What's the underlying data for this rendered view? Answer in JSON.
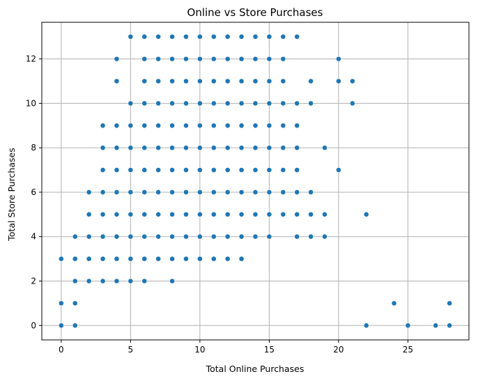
{
  "chart_data": {
    "type": "scatter",
    "title": "Online vs Store Purchases",
    "xlabel": "Total Online Purchases",
    "ylabel": "Total Store Purchases",
    "xlim": [
      -1.4,
      29.4
    ],
    "ylim": [
      -0.65,
      13.65
    ],
    "xticks": [
      0,
      5,
      10,
      15,
      20,
      25
    ],
    "yticks": [
      0,
      2,
      4,
      6,
      8,
      10,
      12
    ],
    "grid": true,
    "colors": {
      "point": "#1f77b4",
      "grid": "#b0b0b0"
    },
    "points": [
      [
        5,
        13
      ],
      [
        6,
        13
      ],
      [
        7,
        13
      ],
      [
        8,
        13
      ],
      [
        9,
        13
      ],
      [
        10,
        13
      ],
      [
        11,
        13
      ],
      [
        12,
        13
      ],
      [
        13,
        13
      ],
      [
        14,
        13
      ],
      [
        15,
        13
      ],
      [
        16,
        13
      ],
      [
        17,
        13
      ],
      [
        4,
        12
      ],
      [
        6,
        12
      ],
      [
        7,
        12
      ],
      [
        8,
        12
      ],
      [
        9,
        12
      ],
      [
        10,
        12
      ],
      [
        11,
        12
      ],
      [
        12,
        12
      ],
      [
        13,
        12
      ],
      [
        14,
        12
      ],
      [
        15,
        12
      ],
      [
        16,
        12
      ],
      [
        20,
        12
      ],
      [
        4,
        11
      ],
      [
        6,
        11
      ],
      [
        7,
        11
      ],
      [
        8,
        11
      ],
      [
        9,
        11
      ],
      [
        10,
        11
      ],
      [
        11,
        11
      ],
      [
        12,
        11
      ],
      [
        13,
        11
      ],
      [
        14,
        11
      ],
      [
        15,
        11
      ],
      [
        16,
        11
      ],
      [
        18,
        11
      ],
      [
        20,
        11
      ],
      [
        21,
        11
      ],
      [
        5,
        10
      ],
      [
        6,
        10
      ],
      [
        7,
        10
      ],
      [
        8,
        10
      ],
      [
        9,
        10
      ],
      [
        10,
        10
      ],
      [
        11,
        10
      ],
      [
        12,
        10
      ],
      [
        13,
        10
      ],
      [
        14,
        10
      ],
      [
        15,
        10
      ],
      [
        16,
        10
      ],
      [
        17,
        10
      ],
      [
        18,
        10
      ],
      [
        21,
        10
      ],
      [
        3,
        9
      ],
      [
        4,
        9
      ],
      [
        5,
        9
      ],
      [
        6,
        9
      ],
      [
        7,
        9
      ],
      [
        8,
        9
      ],
      [
        9,
        9
      ],
      [
        10,
        9
      ],
      [
        11,
        9
      ],
      [
        12,
        9
      ],
      [
        13,
        9
      ],
      [
        14,
        9
      ],
      [
        15,
        9
      ],
      [
        16,
        9
      ],
      [
        17,
        9
      ],
      [
        3,
        8
      ],
      [
        4,
        8
      ],
      [
        5,
        8
      ],
      [
        6,
        8
      ],
      [
        7,
        8
      ],
      [
        8,
        8
      ],
      [
        9,
        8
      ],
      [
        10,
        8
      ],
      [
        11,
        8
      ],
      [
        12,
        8
      ],
      [
        13,
        8
      ],
      [
        14,
        8
      ],
      [
        15,
        8
      ],
      [
        16,
        8
      ],
      [
        17,
        8
      ],
      [
        19,
        8
      ],
      [
        3,
        7
      ],
      [
        4,
        7
      ],
      [
        5,
        7
      ],
      [
        6,
        7
      ],
      [
        7,
        7
      ],
      [
        8,
        7
      ],
      [
        9,
        7
      ],
      [
        10,
        7
      ],
      [
        11,
        7
      ],
      [
        12,
        7
      ],
      [
        13,
        7
      ],
      [
        14,
        7
      ],
      [
        15,
        7
      ],
      [
        16,
        7
      ],
      [
        17,
        7
      ],
      [
        20,
        7
      ],
      [
        2,
        6
      ],
      [
        3,
        6
      ],
      [
        4,
        6
      ],
      [
        5,
        6
      ],
      [
        6,
        6
      ],
      [
        7,
        6
      ],
      [
        8,
        6
      ],
      [
        9,
        6
      ],
      [
        10,
        6
      ],
      [
        11,
        6
      ],
      [
        12,
        6
      ],
      [
        13,
        6
      ],
      [
        14,
        6
      ],
      [
        15,
        6
      ],
      [
        16,
        6
      ],
      [
        17,
        6
      ],
      [
        18,
        6
      ],
      [
        2,
        5
      ],
      [
        3,
        5
      ],
      [
        4,
        5
      ],
      [
        5,
        5
      ],
      [
        6,
        5
      ],
      [
        7,
        5
      ],
      [
        8,
        5
      ],
      [
        9,
        5
      ],
      [
        10,
        5
      ],
      [
        11,
        5
      ],
      [
        12,
        5
      ],
      [
        13,
        5
      ],
      [
        14,
        5
      ],
      [
        15,
        5
      ],
      [
        16,
        5
      ],
      [
        17,
        5
      ],
      [
        18,
        5
      ],
      [
        19,
        5
      ],
      [
        22,
        5
      ],
      [
        1,
        4
      ],
      [
        2,
        4
      ],
      [
        3,
        4
      ],
      [
        4,
        4
      ],
      [
        5,
        4
      ],
      [
        6,
        4
      ],
      [
        7,
        4
      ],
      [
        8,
        4
      ],
      [
        9,
        4
      ],
      [
        10,
        4
      ],
      [
        11,
        4
      ],
      [
        12,
        4
      ],
      [
        13,
        4
      ],
      [
        14,
        4
      ],
      [
        15,
        4
      ],
      [
        17,
        4
      ],
      [
        18,
        4
      ],
      [
        19,
        4
      ],
      [
        0,
        3
      ],
      [
        1,
        3
      ],
      [
        2,
        3
      ],
      [
        3,
        3
      ],
      [
        4,
        3
      ],
      [
        5,
        3
      ],
      [
        6,
        3
      ],
      [
        7,
        3
      ],
      [
        8,
        3
      ],
      [
        9,
        3
      ],
      [
        10,
        3
      ],
      [
        11,
        3
      ],
      [
        12,
        3
      ],
      [
        13,
        3
      ],
      [
        1,
        2
      ],
      [
        2,
        2
      ],
      [
        3,
        2
      ],
      [
        4,
        2
      ],
      [
        5,
        2
      ],
      [
        6,
        2
      ],
      [
        8,
        2
      ],
      [
        0,
        1
      ],
      [
        1,
        1
      ],
      [
        24,
        1
      ],
      [
        28,
        1
      ],
      [
        0,
        0
      ],
      [
        1,
        0
      ],
      [
        22,
        0
      ],
      [
        25,
        0
      ],
      [
        27,
        0
      ],
      [
        28,
        0
      ]
    ]
  }
}
